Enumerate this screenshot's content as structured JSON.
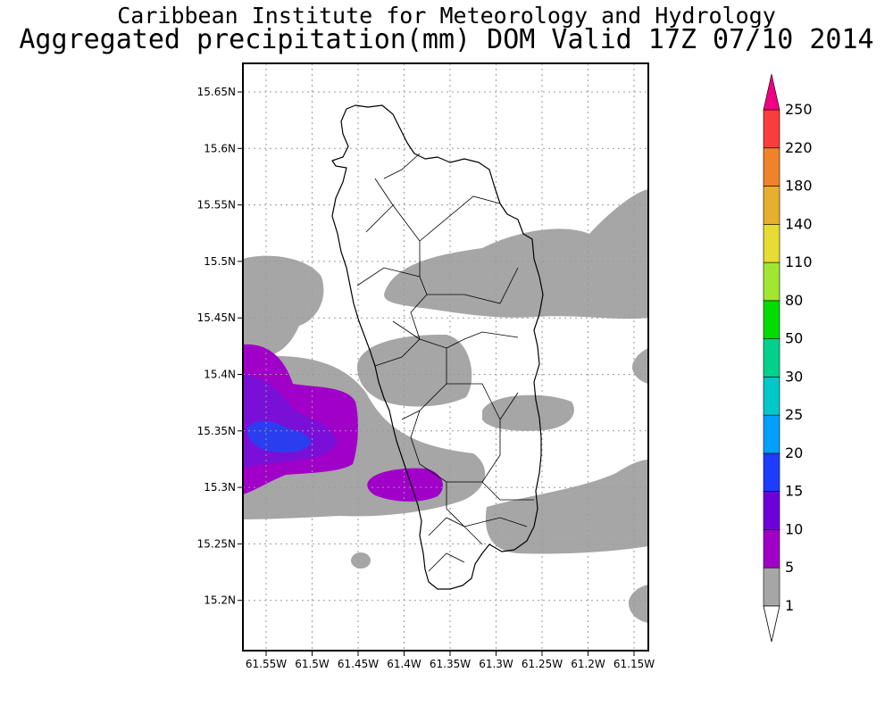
{
  "title": {
    "line1": "Caribbean Institute for Meteorology and Hydrology",
    "line2": "Aggregated precipitation(mm) DOM Valid 17Z 07/10 2014"
  },
  "map": {
    "lat_labels": [
      "15.65N",
      "15.6N",
      "15.55N",
      "15.5N",
      "15.45N",
      "15.4N",
      "15.35N",
      "15.3N",
      "15.25N",
      "15.2N"
    ],
    "lon_labels": [
      "61.55W",
      "61.5W",
      "61.45W",
      "61.4W",
      "61.35W",
      "61.3W",
      "61.25W",
      "61.2W",
      "61.15W"
    ],
    "lat_values": [
      15.65,
      15.6,
      15.55,
      15.5,
      15.45,
      15.4,
      15.35,
      15.3,
      15.25,
      15.2
    ],
    "lon_values": [
      -61.55,
      -61.5,
      -61.45,
      -61.4,
      -61.35,
      -61.3,
      -61.25,
      -61.2,
      -61.15
    ],
    "grid": true,
    "background_color": "#ffffff",
    "coastline_color": "#000000"
  },
  "colorbar": {
    "levels": [
      "1",
      "5",
      "10",
      "15",
      "20",
      "25",
      "30",
      "50",
      "80",
      "110",
      "140",
      "180",
      "220",
      "250"
    ],
    "colors": [
      "#a6a6a6",
      "#a000c8",
      "#6e00dc",
      "#1e3cff",
      "#00a0ff",
      "#00c8c8",
      "#00d28c",
      "#00dc00",
      "#a0e632",
      "#e6dc32",
      "#e6af2d",
      "#f08228",
      "#fa3c3c",
      "#f00082"
    ],
    "over_color": "#f00082",
    "under_color": "#ffffff"
  }
}
